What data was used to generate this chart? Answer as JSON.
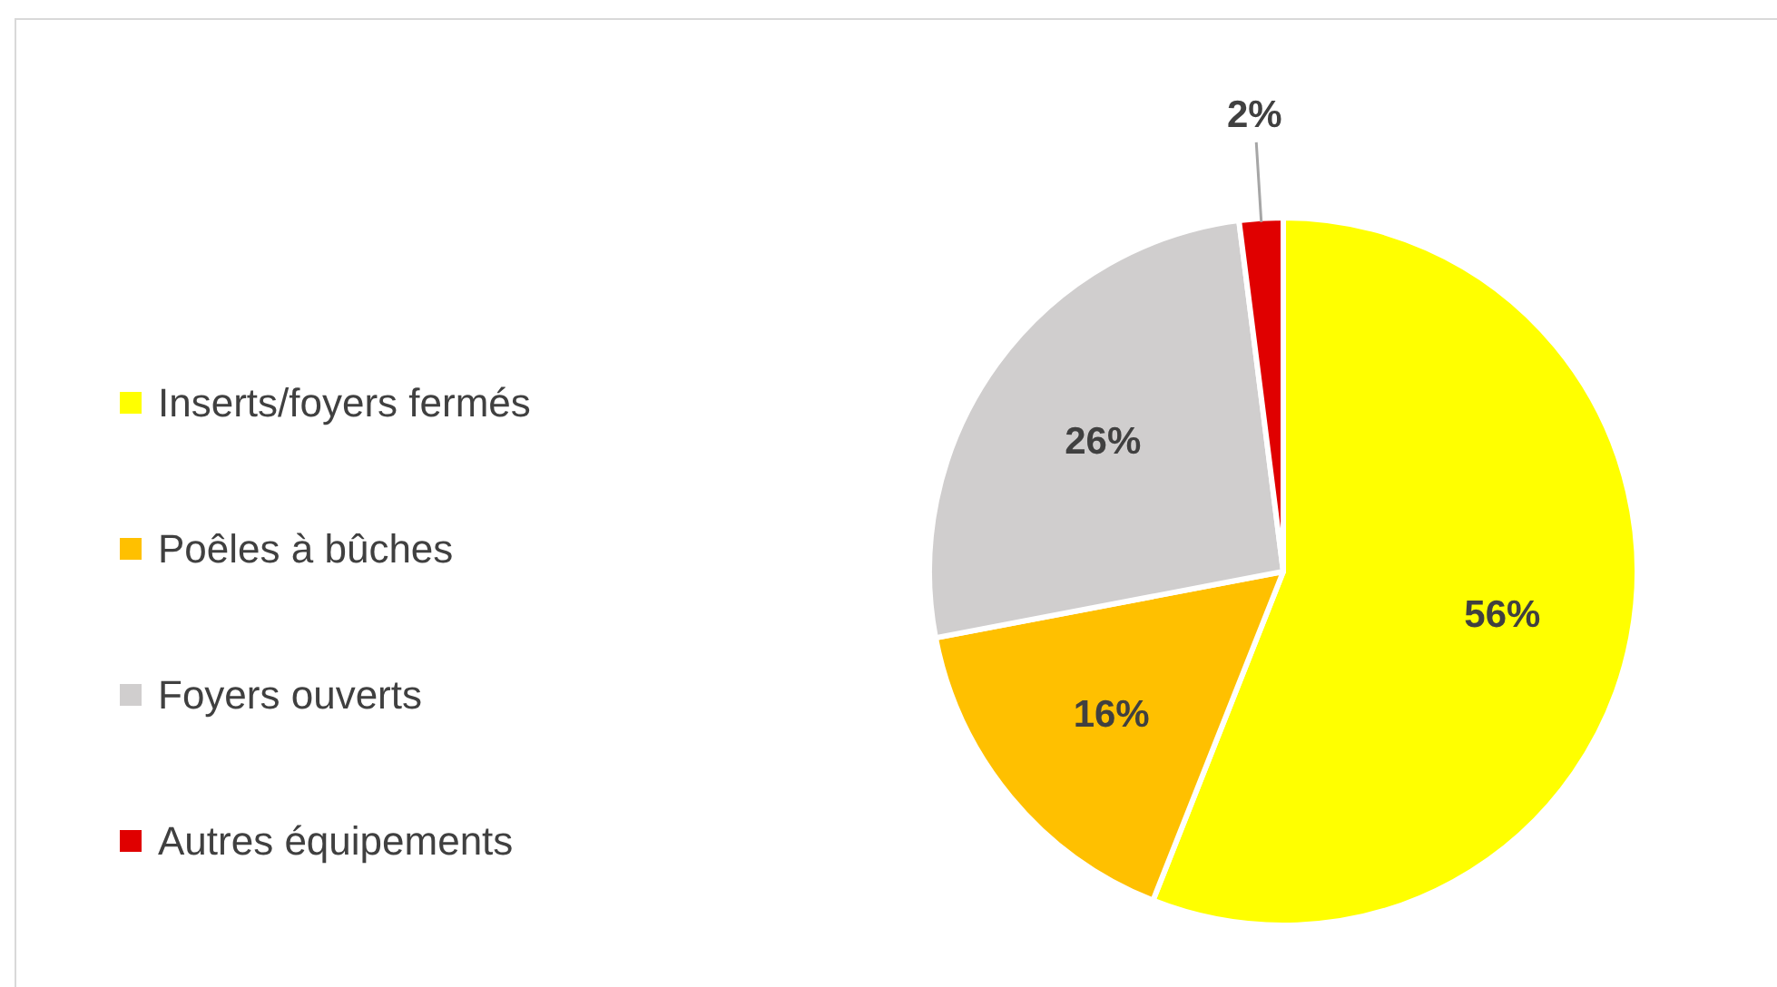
{
  "chart_data": {
    "type": "pie",
    "categories": [
      "Inserts/foyers fermés",
      "Poêles à bûches",
      "Foyers ouverts",
      "Autres équipements"
    ],
    "values": [
      56,
      16,
      26,
      2
    ],
    "colors": [
      "#ffff00",
      "#ffc000",
      "#d0cece",
      "#e00000"
    ],
    "value_labels": [
      "56%",
      "16%",
      "26%",
      "2%"
    ],
    "legend": "left"
  }
}
